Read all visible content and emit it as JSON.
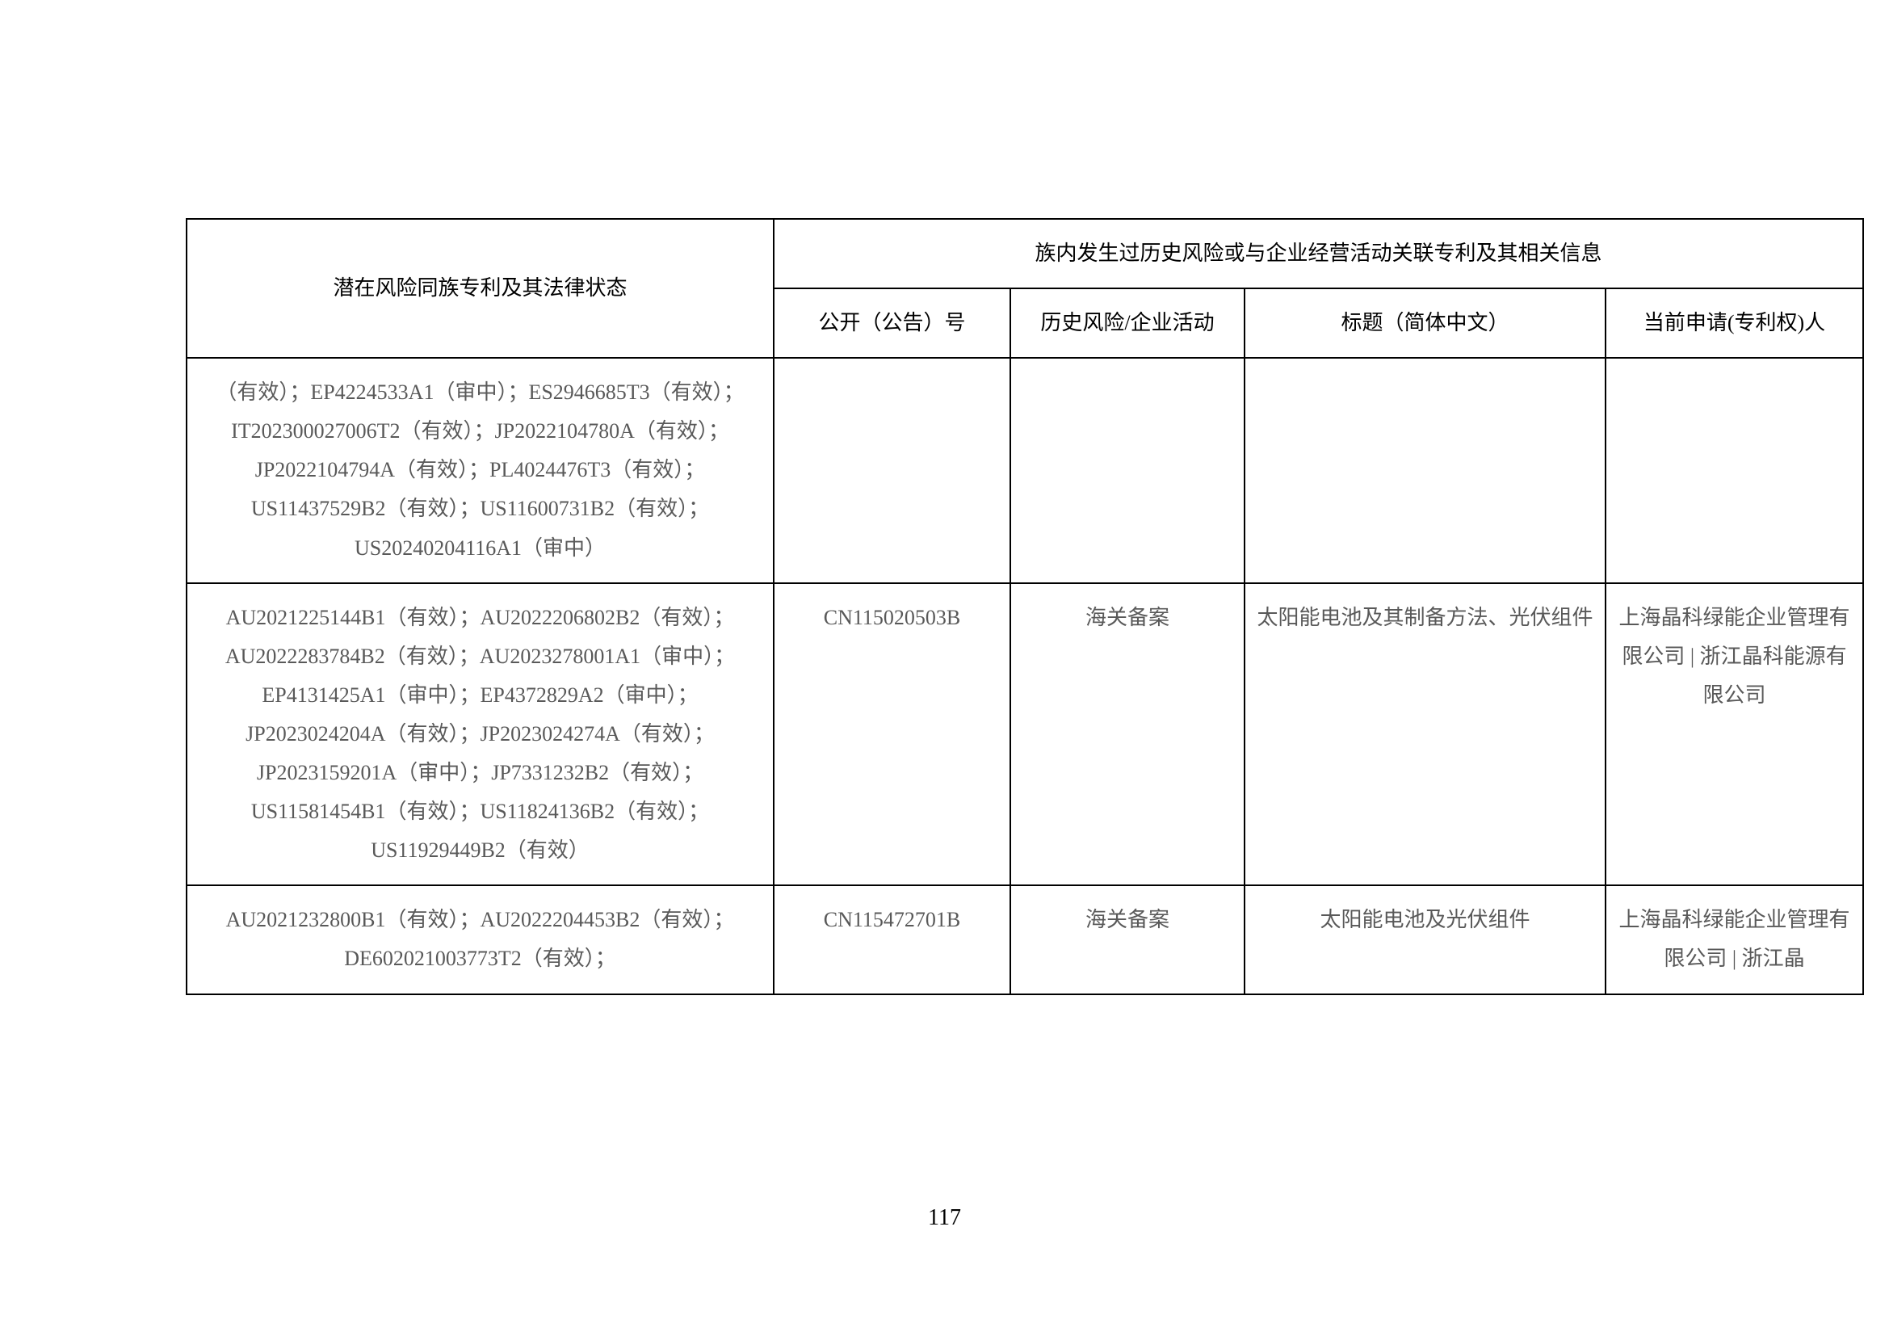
{
  "table": {
    "headers": {
      "col1_main": "潜在风险同族专利及其法律状态",
      "merged_header": "族内发生过历史风险或与企业经营活动关联专利及其相关信息",
      "col2": "公开（公告）号",
      "col3": "历史风险/企业活动",
      "col4": "标题（简体中文）",
      "col5": "当前申请(专利权)人"
    },
    "rows": [
      {
        "c1": "（有效）；EP4224533A1（审中）；ES2946685T3（有效）；IT202300027006T2（有效）；JP2022104780A（有效）；JP2022104794A（有效）；PL4024476T3（有效）；US11437529B2（有效）；US11600731B2（有效）；US20240204116A1（审中）",
        "c2": "",
        "c3": "",
        "c4": "",
        "c5": ""
      },
      {
        "c1": "AU2021225144B1（有效）；AU2022206802B2（有效）；AU2022283784B2（有效）；AU2023278001A1（审中）；EP4131425A1（审中）；EP4372829A2（审中）；JP2023024204A（有效）；JP2023024274A（有效）；JP2023159201A（审中）；JP7331232B2（有效）；US11581454B1（有效）；US11824136B2（有效）；US11929449B2（有效）",
        "c2": "CN115020503B",
        "c3": "海关备案",
        "c4": "太阳能电池及其制备方法、光伏组件",
        "c5": "上海晶科绿能企业管理有限公司 | 浙江晶科能源有限公司"
      },
      {
        "c1": "AU2021232800B1（有效）；AU2022204453B2（有效）；DE602021003773T2（有效）；",
        "c2": "CN115472701B",
        "c3": "海关备案",
        "c4": "太阳能电池及光伏组件",
        "c5": "上海晶科绿能企业管理有限公司 | 浙江晶"
      }
    ]
  },
  "page_number": "117",
  "colors": {
    "border": "#000000",
    "header_text": "#000000",
    "data_text": "#595959",
    "background": "#ffffff"
  }
}
